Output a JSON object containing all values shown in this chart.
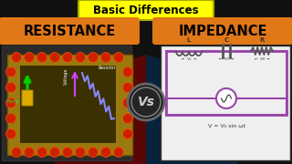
{
  "background_color": "#111111",
  "title_box_color": "#FFFF00",
  "title_text": "Basic Differences",
  "title_text_color": "#000000",
  "title_fontsize": 8.5,
  "left_box_color": "#E07818",
  "right_box_color": "#E07818",
  "left_label": "RESISTANCE",
  "right_label": "IMPEDANCE",
  "label_fontsize": 10.5,
  "label_text_color": "#000000",
  "circuit_border_color": "#9944AA",
  "formula_text": "V = V₀ sin ωt",
  "vs_text": "Vs",
  "board_color": "#B8860B",
  "board_edge": "#8B6914",
  "ball_color": "#CC2200",
  "ball_edge": "#FF5500",
  "right_panel_bg": "#EFEFEF",
  "red_sweep_color": "#880000",
  "blue_sweep_color": "#003366"
}
